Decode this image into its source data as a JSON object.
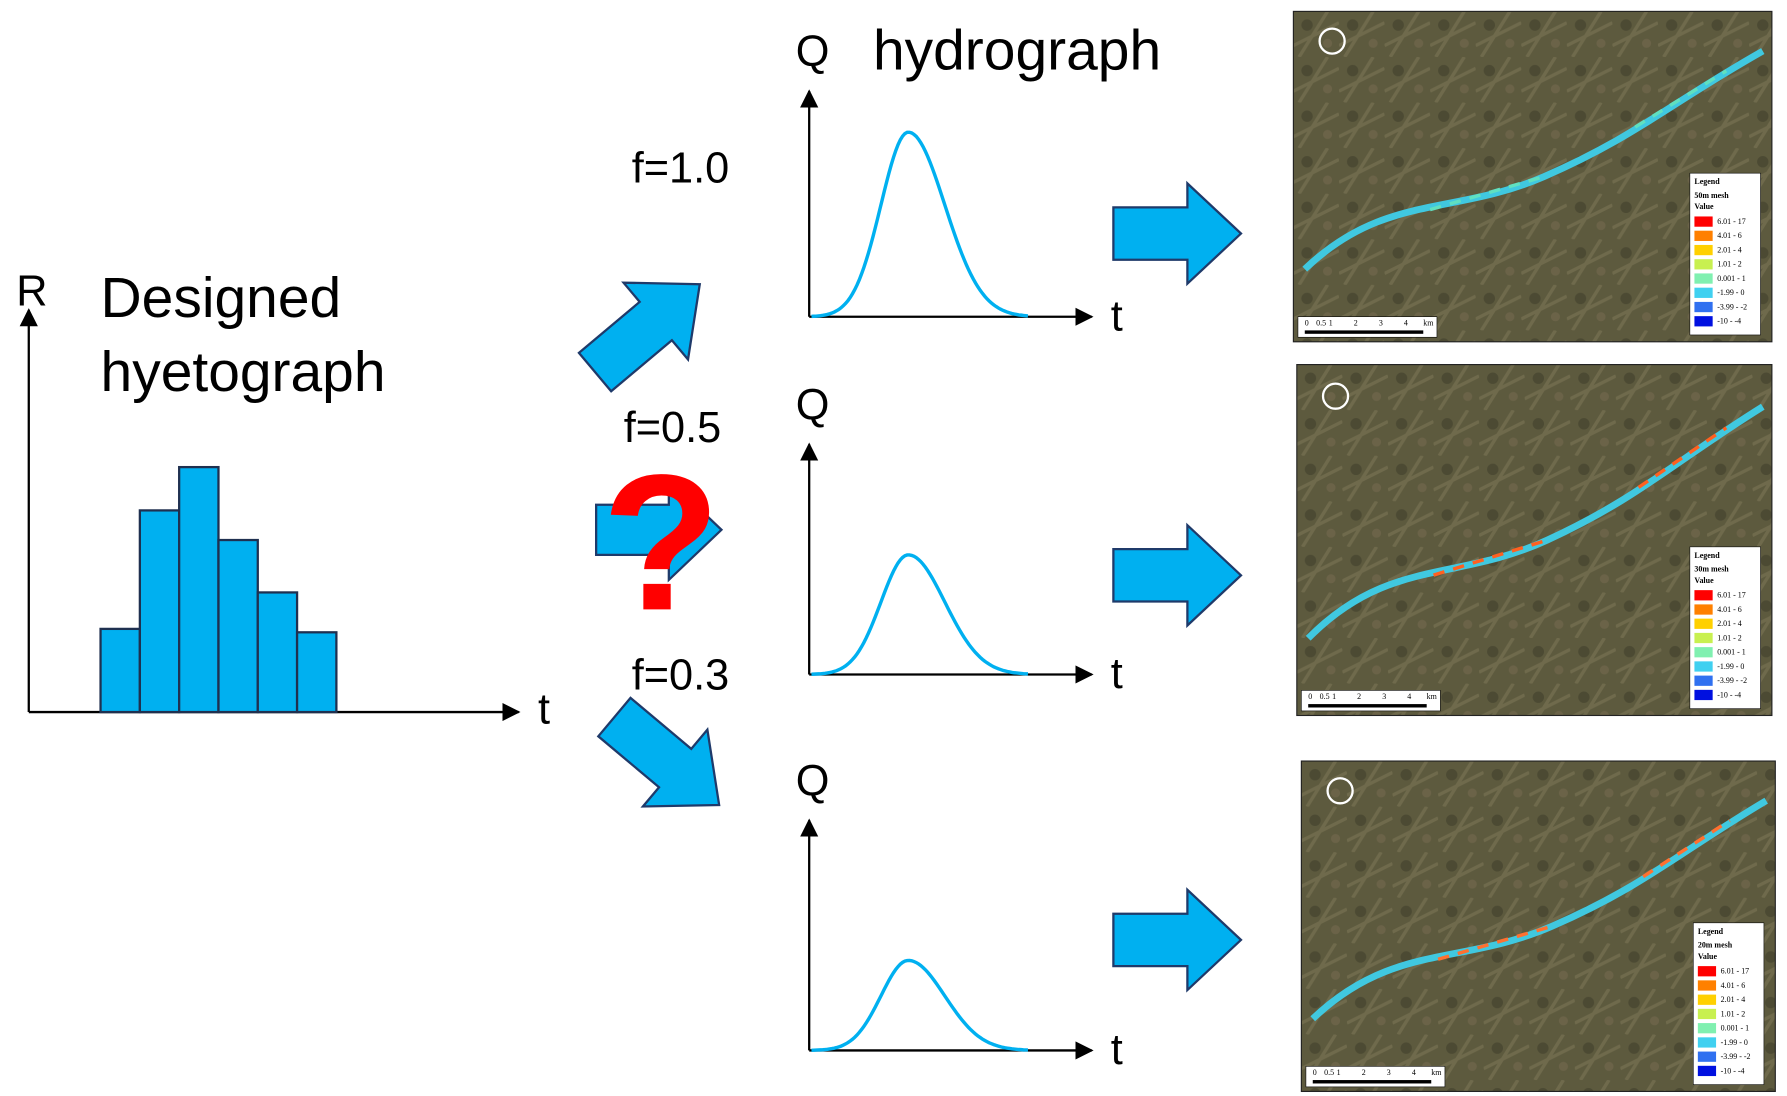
{
  "hyetograph": {
    "axis_y": "R",
    "title_lines": [
      "Designed",
      "hyetograph"
    ],
    "axis_x": "t"
  },
  "question_mark": "?",
  "hydrograph_title": "hydrograph",
  "cases": [
    {
      "f": "f=1.0",
      "axis_y": "Q",
      "axis_x": "t",
      "map": {
        "legend_title": "Legend",
        "mesh": "50m mesh",
        "value_label": "Value"
      }
    },
    {
      "f": "f=0.5",
      "axis_y": "Q",
      "axis_x": "t",
      "map": {
        "legend_title": "Legend",
        "mesh": "30m mesh",
        "value_label": "Value"
      }
    },
    {
      "f": "f=0.3",
      "axis_y": "Q",
      "axis_x": "t",
      "map": {
        "legend_title": "Legend",
        "mesh": "20m mesh",
        "value_label": "Value"
      }
    }
  ],
  "legend_items": [
    "6.01 - 17",
    "4.01 - 6",
    "2.01 - 4",
    "1.01 - 2",
    "0.001 - 1",
    "-1.99 - 0",
    "-3.99 - -2",
    "-10 - -4"
  ],
  "scale_labels": [
    "0",
    "0.5",
    "1",
    "2",
    "3",
    "4",
    "km"
  ]
}
